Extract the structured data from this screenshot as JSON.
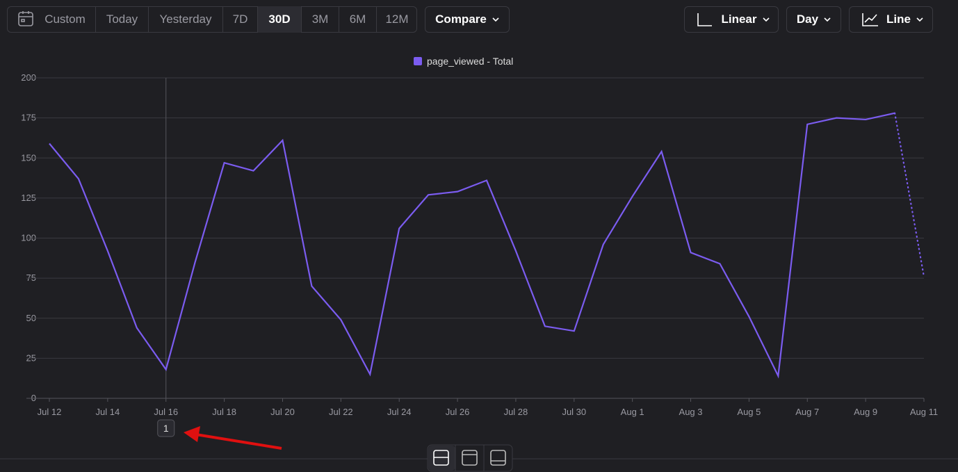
{
  "toolbar": {
    "ranges": [
      "Custom",
      "Today",
      "Yesterday",
      "7D",
      "30D",
      "3M",
      "6M",
      "12M"
    ],
    "active": "30D",
    "compare": "Compare",
    "scale": "Linear",
    "interval": "Day",
    "chart_kind": "Line"
  },
  "chart_data": {
    "type": "line",
    "legend": "top",
    "categories": [
      "Jul 12",
      null,
      "Jul 14",
      null,
      "Jul 16",
      null,
      "Jul 18",
      null,
      "Jul 20",
      null,
      "Jul 22",
      null,
      "Jul 24",
      null,
      "Jul 26",
      null,
      "Jul 28",
      null,
      "Jul 30",
      null,
      "Aug 1",
      null,
      "Aug 3",
      null,
      "Aug 5",
      null,
      "Aug 7",
      null,
      "Aug 9",
      null,
      "Aug 11"
    ],
    "series": [
      {
        "name": "page_viewed - Total",
        "color": "#7b5cf0",
        "values": [
          159,
          137,
          92,
          44,
          18,
          85,
          147,
          142,
          161,
          70,
          49,
          15,
          106,
          127,
          129,
          136,
          92,
          45,
          42,
          96,
          126,
          154,
          91,
          84,
          51,
          14,
          171,
          175,
          174,
          178,
          76
        ]
      }
    ],
    "dotted_last": true,
    "ylim": [
      0,
      200
    ],
    "yticks": [
      0,
      25,
      50,
      75,
      100,
      125,
      150,
      175,
      200
    ],
    "grid": true,
    "annotation": {
      "at": "Jul 16",
      "label": "1"
    }
  }
}
